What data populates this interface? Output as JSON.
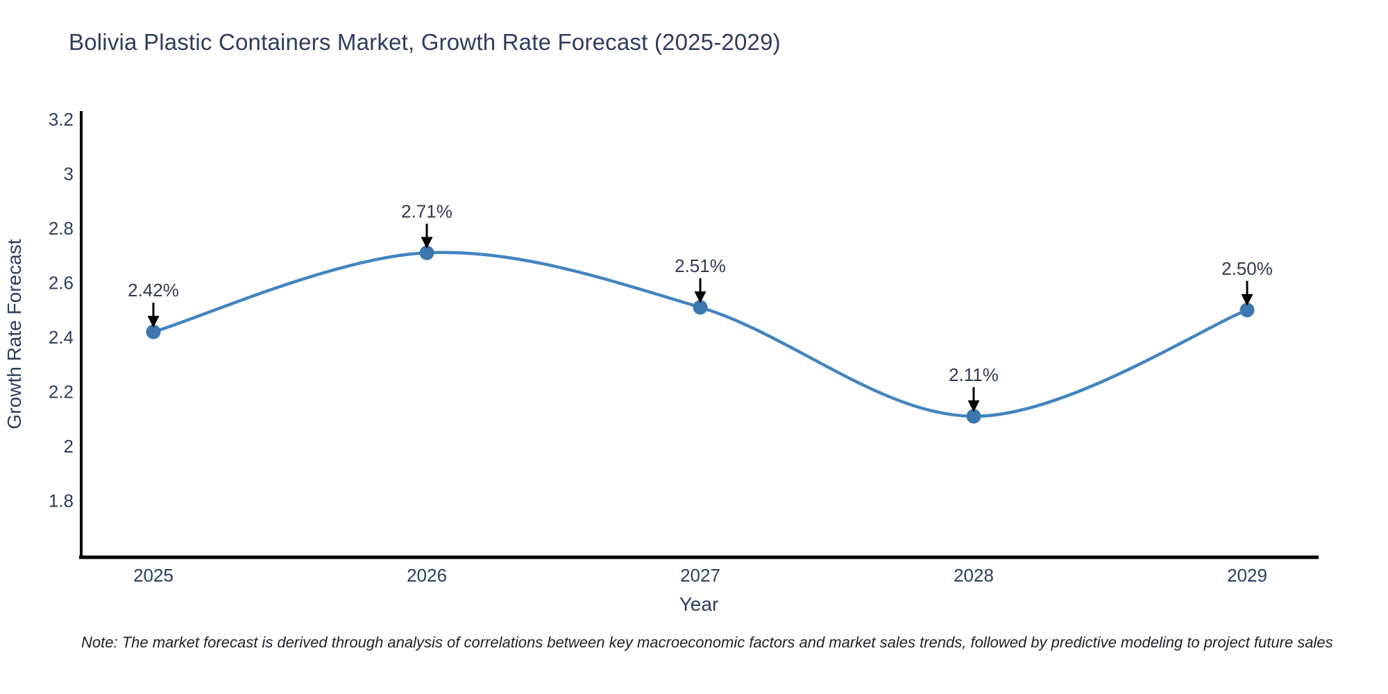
{
  "page": {
    "note": "Note: The market forecast is derived through analysis of correlations between key macroeconomic factors and market sales trends, followed by predictive modeling to project future sales"
  },
  "chart_data": {
    "type": "line",
    "title": "Bolivia Plastic Containers Market, Growth Rate Forecast (2025-2029)",
    "xlabel": "Year",
    "ylabel": "Growth Rate Forecast",
    "x": [
      2025,
      2026,
      2027,
      2028,
      2029
    ],
    "y": [
      2.42,
      2.71,
      2.51,
      2.11,
      2.5
    ],
    "point_labels": [
      "2.42%",
      "2.71%",
      "2.51%",
      "2.11%",
      "2.50%"
    ],
    "x_tick_labels": [
      "2025",
      "2026",
      "2027",
      "2028",
      "2029"
    ],
    "y_tick_values": [
      3.2,
      3.0,
      2.8,
      2.6,
      2.4,
      2.2,
      2.0,
      1.8
    ],
    "y_tick_labels": [
      "3.2",
      "3",
      "2.8",
      "2.6",
      "2.4",
      "2.2",
      "2",
      "1.8"
    ],
    "ylim": [
      1.57,
      3.25
    ],
    "line_shape": "spline",
    "grid": false,
    "legend": false,
    "colors": {
      "line": "#4484bf",
      "marker": "#3c77ad",
      "arrow": "#000000",
      "axis_line": "#000000",
      "label_text": "#2a3f5f",
      "annotation_text": "#2f3b52"
    }
  }
}
